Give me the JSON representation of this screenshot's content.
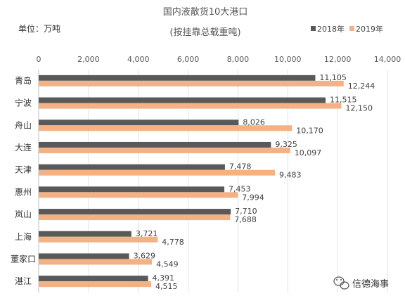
{
  "chart_data": {
    "type": "bar",
    "orientation": "horizontal",
    "title": "国内液散货10大港口",
    "subtitle": "(按挂靠总载重吨)",
    "unit_label": "单位：万吨",
    "categories": [
      "青岛",
      "宁波",
      "舟山",
      "大连",
      "天津",
      "惠州",
      "岚山",
      "上海",
      "董家口",
      "湛江"
    ],
    "series": [
      {
        "name": "2018年",
        "color": "#595959",
        "values": [
          11105,
          11515,
          8026,
          9325,
          7478,
          7453,
          7710,
          3721,
          3629,
          4391
        ],
        "labels": [
          "11,105",
          "11,515",
          "8,026",
          "9,325",
          "7,478",
          "7,453",
          "7,710",
          "3,721",
          "3,629",
          "4,391"
        ]
      },
      {
        "name": "2019年",
        "color": "#F4B183",
        "values": [
          12244,
          12150,
          10170,
          10097,
          9483,
          7994,
          7688,
          4778,
          4549,
          4515
        ],
        "labels": [
          "12,244",
          "12,150",
          "10,170",
          "10,097",
          "9,483",
          "7,994",
          "7,688",
          "4,778",
          "4,549",
          "4,515"
        ]
      }
    ],
    "xlim": [
      0,
      14000
    ],
    "x_ticks": [
      "0",
      "2,000",
      "4,000",
      "6,000",
      "8,000",
      "10,000",
      "12,000",
      "14,000"
    ],
    "x_tick_values": [
      0,
      2000,
      4000,
      6000,
      8000,
      10000,
      12000,
      14000
    ],
    "grid": true,
    "legend_position": "top-right"
  },
  "watermark": {
    "text": "信德海事",
    "icon": "wechat-icon"
  }
}
